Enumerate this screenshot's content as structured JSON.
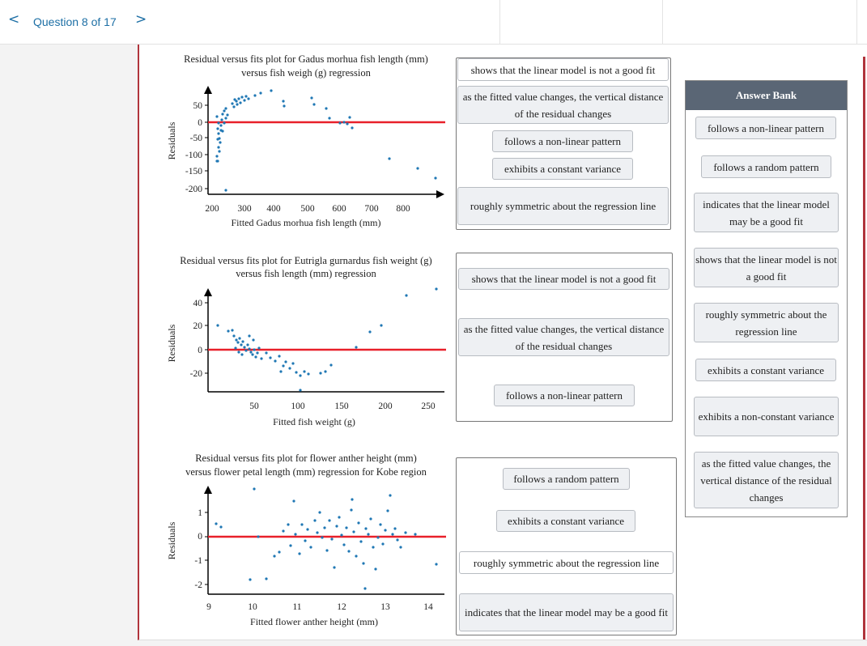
{
  "nav": {
    "question_label": "Question 8 of 17",
    "prev_icon": "<",
    "next_icon": ">"
  },
  "plots": [
    {
      "title1": "Residual versus fits plot for Gadus morhua fish length (mm)",
      "title2": "versus fish weigh (g) regression",
      "ylabel": "Residuals",
      "xlabel": "Fitted Gadus morhua fish length (mm)",
      "yticks": [
        "50",
        "0",
        "-50",
        "-100",
        "-150",
        "-200"
      ],
      "xticks": [
        "200",
        "300",
        "400",
        "500",
        "600",
        "700",
        "800"
      ]
    },
    {
      "title1": "Residual versus fits plot for Eutrigla gurnardus fish weight (g)",
      "title2": "versus fish length (mm) regression",
      "ylabel": "Residuals",
      "xlabel": "Fitted fish weight (g)",
      "yticks": [
        "40",
        "20",
        "0",
        "-20"
      ],
      "xticks": [
        "50",
        "100",
        "150",
        "200",
        "250"
      ]
    },
    {
      "title1": "Residual versus fits plot for flower anther height (mm)",
      "title2": "versus flower petal length (mm) regression for Kobe region",
      "ylabel": "Residuals",
      "xlabel": "Fitted flower anther height (mm)",
      "yticks": [
        "1",
        "0",
        "-1",
        "-2"
      ],
      "xticks": [
        "9",
        "10",
        "11",
        "12",
        "13",
        "14"
      ]
    }
  ],
  "placed": {
    "zone1": [
      "shows that the linear model is not a good fit",
      "as the fitted value changes, the vertical distance of the residual changes",
      "follows a non-linear pattern",
      "exhibits a constant variance",
      "roughly symmetric about the regression line"
    ],
    "zone2": [
      "shows that the linear model is not a good fit",
      "as the fitted value changes, the vertical distance of the residual changes",
      "follows a non-linear pattern"
    ],
    "zone3": [
      "follows a random pattern",
      "exhibits a constant variance",
      "roughly symmetric about the regression line",
      "indicates that the linear model may be a good fit"
    ]
  },
  "answer_bank": {
    "title": "Answer Bank",
    "items": [
      "follows a non-linear pattern",
      "follows a random pattern",
      "indicates that the linear model may be a good fit",
      "shows that the linear model is not a good fit",
      "roughly symmetric about the regression line",
      "exhibits a constant variance",
      "exhibits a non-constant variance",
      "as the fitted value changes, the vertical distance of the residual changes"
    ]
  },
  "colors": {
    "accent": "#1d6fa5",
    "border_red": "#b0343c",
    "zero_line": "#e8202a",
    "points": "#1f77b4",
    "bank_header": "#5a6675"
  }
}
